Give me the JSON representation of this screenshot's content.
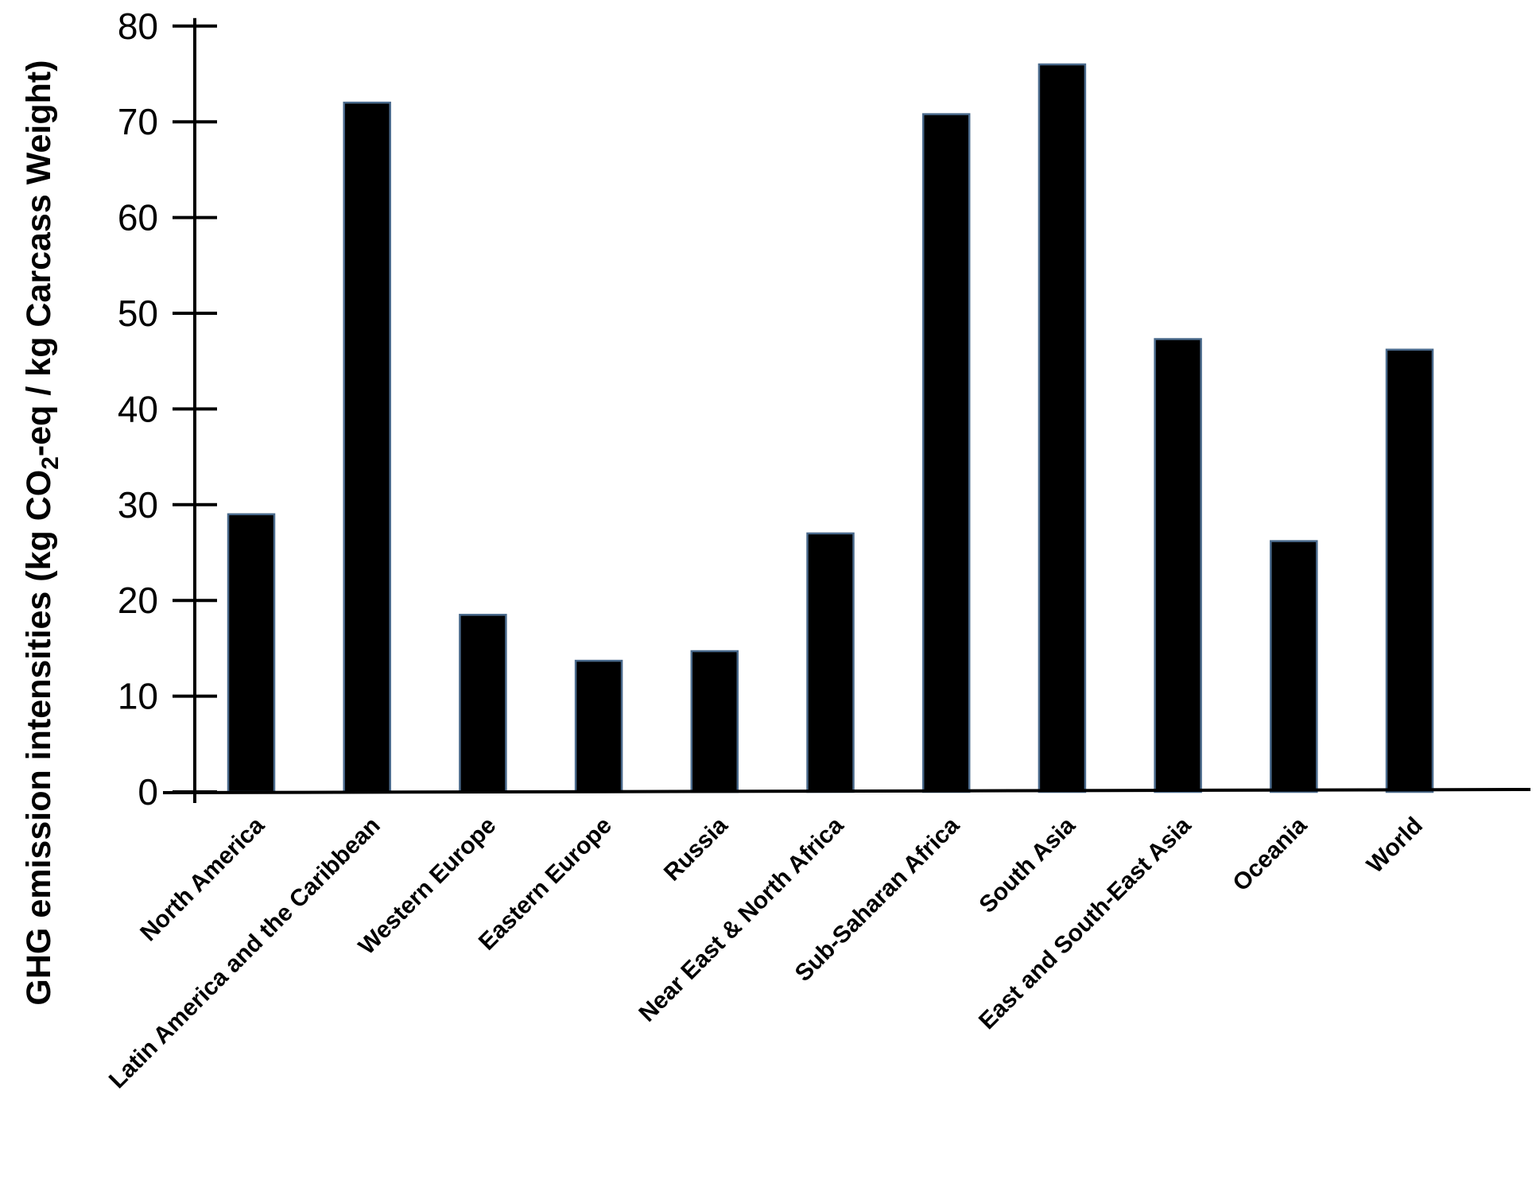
{
  "chart_data": {
    "type": "bar",
    "title": "",
    "xlabel": "",
    "ylabel_parts": {
      "before": "GHG emission intensities (kg CO",
      "subscript": "2",
      "after": "-eq / kg Carcass Weight)"
    },
    "ylim": [
      0,
      80
    ],
    "yticks": [
      0,
      10,
      20,
      30,
      40,
      50,
      60,
      70,
      80
    ],
    "categories": [
      "North America",
      "Latin America and the Caribbean",
      "Western Europe",
      "Eastern Europe",
      "Russia",
      "Near East & North Africa",
      "Sub-Saharan Africa",
      "South Asia",
      "East and South-East Asia",
      "Oceania",
      "World"
    ],
    "values": [
      29,
      72,
      18.5,
      13.7,
      14.7,
      27,
      70.8,
      76,
      47.3,
      26.2,
      46.2
    ],
    "bar_color": "#000000",
    "bar_edge_color": "#4a6a8c",
    "grid": false,
    "legend": "none"
  }
}
